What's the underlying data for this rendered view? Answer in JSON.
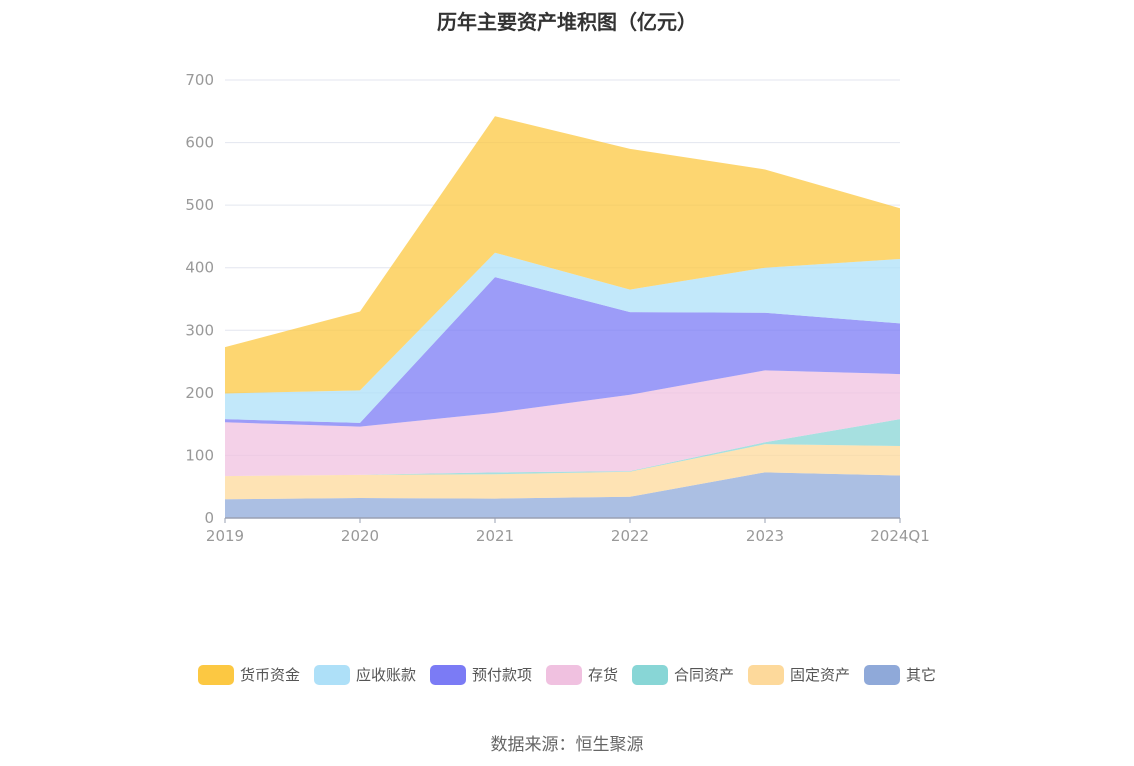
{
  "chart_data": {
    "type": "area",
    "title": "历年主要资产堆积图（亿元）",
    "xlabel": "",
    "ylabel": "",
    "categories": [
      "2019",
      "2020",
      "2021",
      "2022",
      "2023",
      "2024Q1"
    ],
    "ylim": [
      0,
      700
    ],
    "yticks": [
      0,
      100,
      200,
      300,
      400,
      500,
      600,
      700
    ],
    "stacked": true,
    "grid": true,
    "legend_position": "bottom",
    "series": [
      {
        "name": "其它",
        "color": "#8fa9d9",
        "values": [
          30,
          32,
          31,
          34,
          73,
          68
        ]
      },
      {
        "name": "固定资产",
        "color": "#fdd99b",
        "values": [
          37,
          37,
          39,
          40,
          45,
          47
        ]
      },
      {
        "name": "合同资产",
        "color": "#88d6d6",
        "values": [
          0,
          0,
          3,
          1,
          3,
          43
        ]
      },
      {
        "name": "存货",
        "color": "#f0c1e0",
        "values": [
          86,
          77,
          95,
          122,
          115,
          72
        ]
      },
      {
        "name": "预付款项",
        "color": "#7b7bf5",
        "values": [
          5,
          6,
          217,
          132,
          92,
          81
        ]
      },
      {
        "name": "应收账款",
        "color": "#aee0f8",
        "values": [
          41,
          52,
          39,
          36,
          72,
          103
        ]
      },
      {
        "name": "货币资金",
        "color": "#fcc842",
        "values": [
          74,
          126,
          218,
          225,
          157,
          81
        ]
      }
    ]
  },
  "legend_order": [
    "货币资金",
    "应收账款",
    "预付款项",
    "存货",
    "合同资产",
    "固定资产",
    "其它"
  ],
  "source": "数据来源：恒生聚源"
}
